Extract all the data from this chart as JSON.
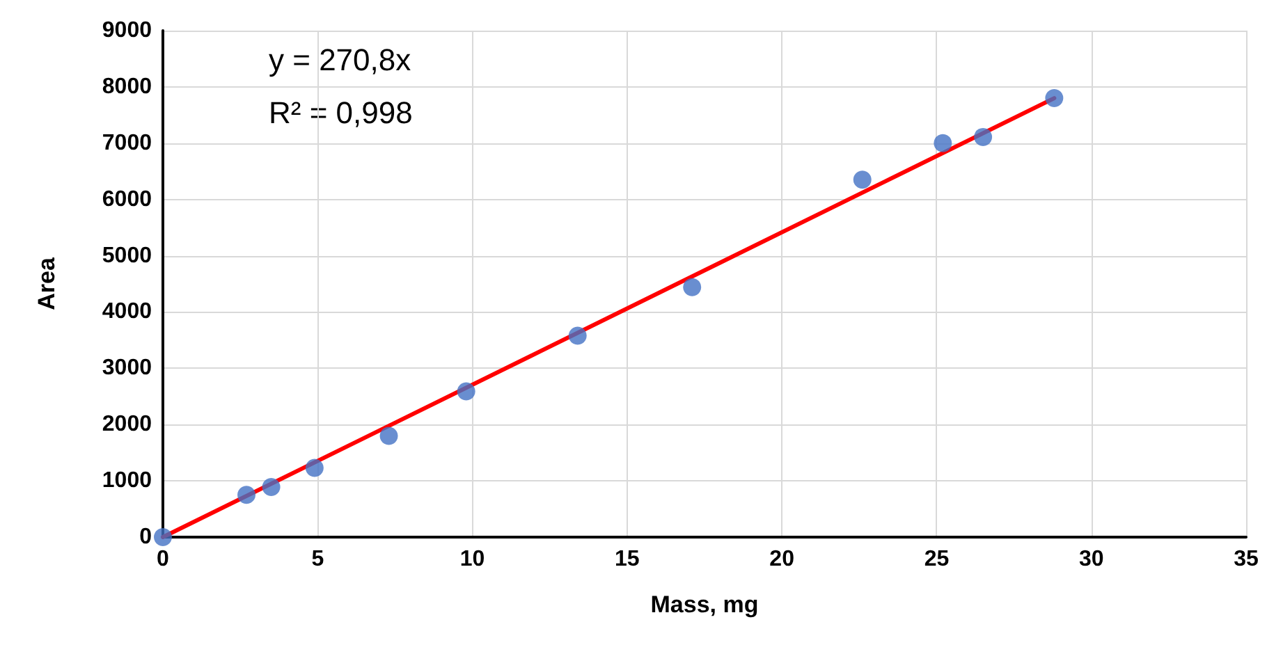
{
  "chart_data": {
    "type": "scatter",
    "xlabel": "Mass, mg",
    "ylabel": "Area",
    "annotations": [
      "y = 270,8x",
      "R² = 0,998"
    ],
    "series": [
      {
        "color": "#4472c4",
        "x": [
          0,
          2.7,
          3.5,
          4.9,
          7.3,
          9.8,
          13.4,
          17.1,
          22.6,
          25.2,
          26.5,
          28.8
        ],
        "values": [
          0,
          750,
          890,
          1230,
          1800,
          2590,
          3580,
          4440,
          6350,
          7000,
          7110,
          7800
        ],
        "marker": "circle"
      },
      {
        "type": "line",
        "color": "#ff0000",
        "x": [
          0,
          28.8
        ],
        "values": [
          0,
          7800
        ],
        "marker": "none",
        "line_style": "solid"
      }
    ],
    "xlim": [
      0,
      35
    ],
    "xticks": [
      0,
      5,
      10,
      15,
      20,
      25,
      30,
      35
    ],
    "ylim": [
      0,
      9000
    ],
    "yticks": [
      0,
      1000,
      2000,
      3000,
      4000,
      5000,
      6000,
      7000,
      8000,
      9000
    ],
    "grid": true
  }
}
